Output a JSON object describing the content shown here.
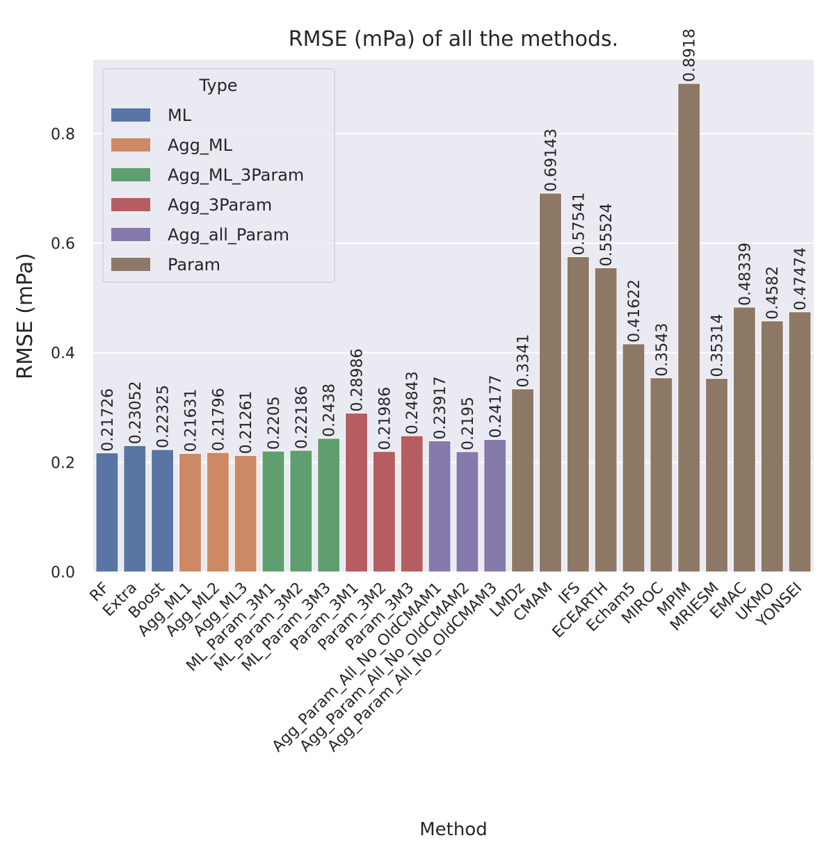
{
  "chart_data": {
    "type": "bar",
    "title": "RMSE (mPa) of all the methods.",
    "xlabel": "Method",
    "ylabel": "RMSE (mPa)",
    "ylim": [
      0,
      0.935
    ],
    "yticks": [
      "0.0",
      "0.2",
      "0.4",
      "0.6",
      "0.8"
    ],
    "grid": true,
    "legend": {
      "title": "Type",
      "placement": "top-left",
      "entries": [
        {
          "label": "ML",
          "color": "#5875a4"
        },
        {
          "label": "Agg_ML",
          "color": "#cc8963"
        },
        {
          "label": "Agg_ML_3Param",
          "color": "#5f9e6e"
        },
        {
          "label": "Agg_3Param",
          "color": "#b55d60"
        },
        {
          "label": "Agg_all_Param",
          "color": "#857aab"
        },
        {
          "label": "Param",
          "color": "#8d7866"
        }
      ]
    },
    "bars": [
      {
        "category": "RF",
        "value": 0.21726,
        "label": "0.21726",
        "type": "ML"
      },
      {
        "category": "Extra",
        "value": 0.23052,
        "label": "0.23052",
        "type": "ML"
      },
      {
        "category": "Boost",
        "value": 0.22325,
        "label": "0.22325",
        "type": "ML"
      },
      {
        "category": "Agg_ML1",
        "value": 0.21631,
        "label": "0.21631",
        "type": "Agg_ML"
      },
      {
        "category": "Agg_ML2",
        "value": 0.21796,
        "label": "0.21796",
        "type": "Agg_ML"
      },
      {
        "category": "Agg_ML3",
        "value": 0.21261,
        "label": "0.21261",
        "type": "Agg_ML"
      },
      {
        "category": "ML_Param_3M1",
        "value": 0.2205,
        "label": "0.2205",
        "type": "Agg_ML_3Param"
      },
      {
        "category": "ML_Param_3M2",
        "value": 0.22186,
        "label": "0.22186",
        "type": "Agg_ML_3Param"
      },
      {
        "category": "ML_Param_3M3",
        "value": 0.2438,
        "label": "0.2438",
        "type": "Agg_ML_3Param"
      },
      {
        "category": "Param_3M1",
        "value": 0.28986,
        "label": "0.28986",
        "type": "Agg_3Param"
      },
      {
        "category": "Param_3M2",
        "value": 0.21986,
        "label": "0.21986",
        "type": "Agg_3Param"
      },
      {
        "category": "Param_3M3",
        "value": 0.24843,
        "label": "0.24843",
        "type": "Agg_3Param"
      },
      {
        "category": "Agg_Param_All_No_OldCMAM1",
        "value": 0.23917,
        "label": "0.23917",
        "type": "Agg_all_Param"
      },
      {
        "category": "Agg_Param_All_No_OldCMAM2",
        "value": 0.2195,
        "label": "0.2195",
        "type": "Agg_all_Param"
      },
      {
        "category": "Agg_Param_All_No_OldCMAM3",
        "value": 0.24177,
        "label": "0.24177",
        "type": "Agg_all_Param"
      },
      {
        "category": "LMDz",
        "value": 0.3341,
        "label": "0.3341",
        "type": "Param"
      },
      {
        "category": "CMAM",
        "value": 0.69143,
        "label": "0.69143",
        "type": "Param"
      },
      {
        "category": "IFS",
        "value": 0.57541,
        "label": "0.57541",
        "type": "Param"
      },
      {
        "category": "ECEARTH",
        "value": 0.55524,
        "label": "0.55524",
        "type": "Param"
      },
      {
        "category": "Echam5",
        "value": 0.41622,
        "label": "0.41622",
        "type": "Param"
      },
      {
        "category": "MIROC",
        "value": 0.3543,
        "label": "0.3543",
        "type": "Param"
      },
      {
        "category": "MPIM",
        "value": 0.8918,
        "label": "0.8918",
        "type": "Param"
      },
      {
        "category": "MRIESM",
        "value": 0.35314,
        "label": "0.35314",
        "type": "Param"
      },
      {
        "category": "EMAC",
        "value": 0.48339,
        "label": "0.48339",
        "type": "Param"
      },
      {
        "category": "UKMO",
        "value": 0.4582,
        "label": "0.4582",
        "type": "Param"
      },
      {
        "category": "YONSEI",
        "value": 0.47474,
        "label": "0.47474",
        "type": "Param"
      }
    ]
  }
}
